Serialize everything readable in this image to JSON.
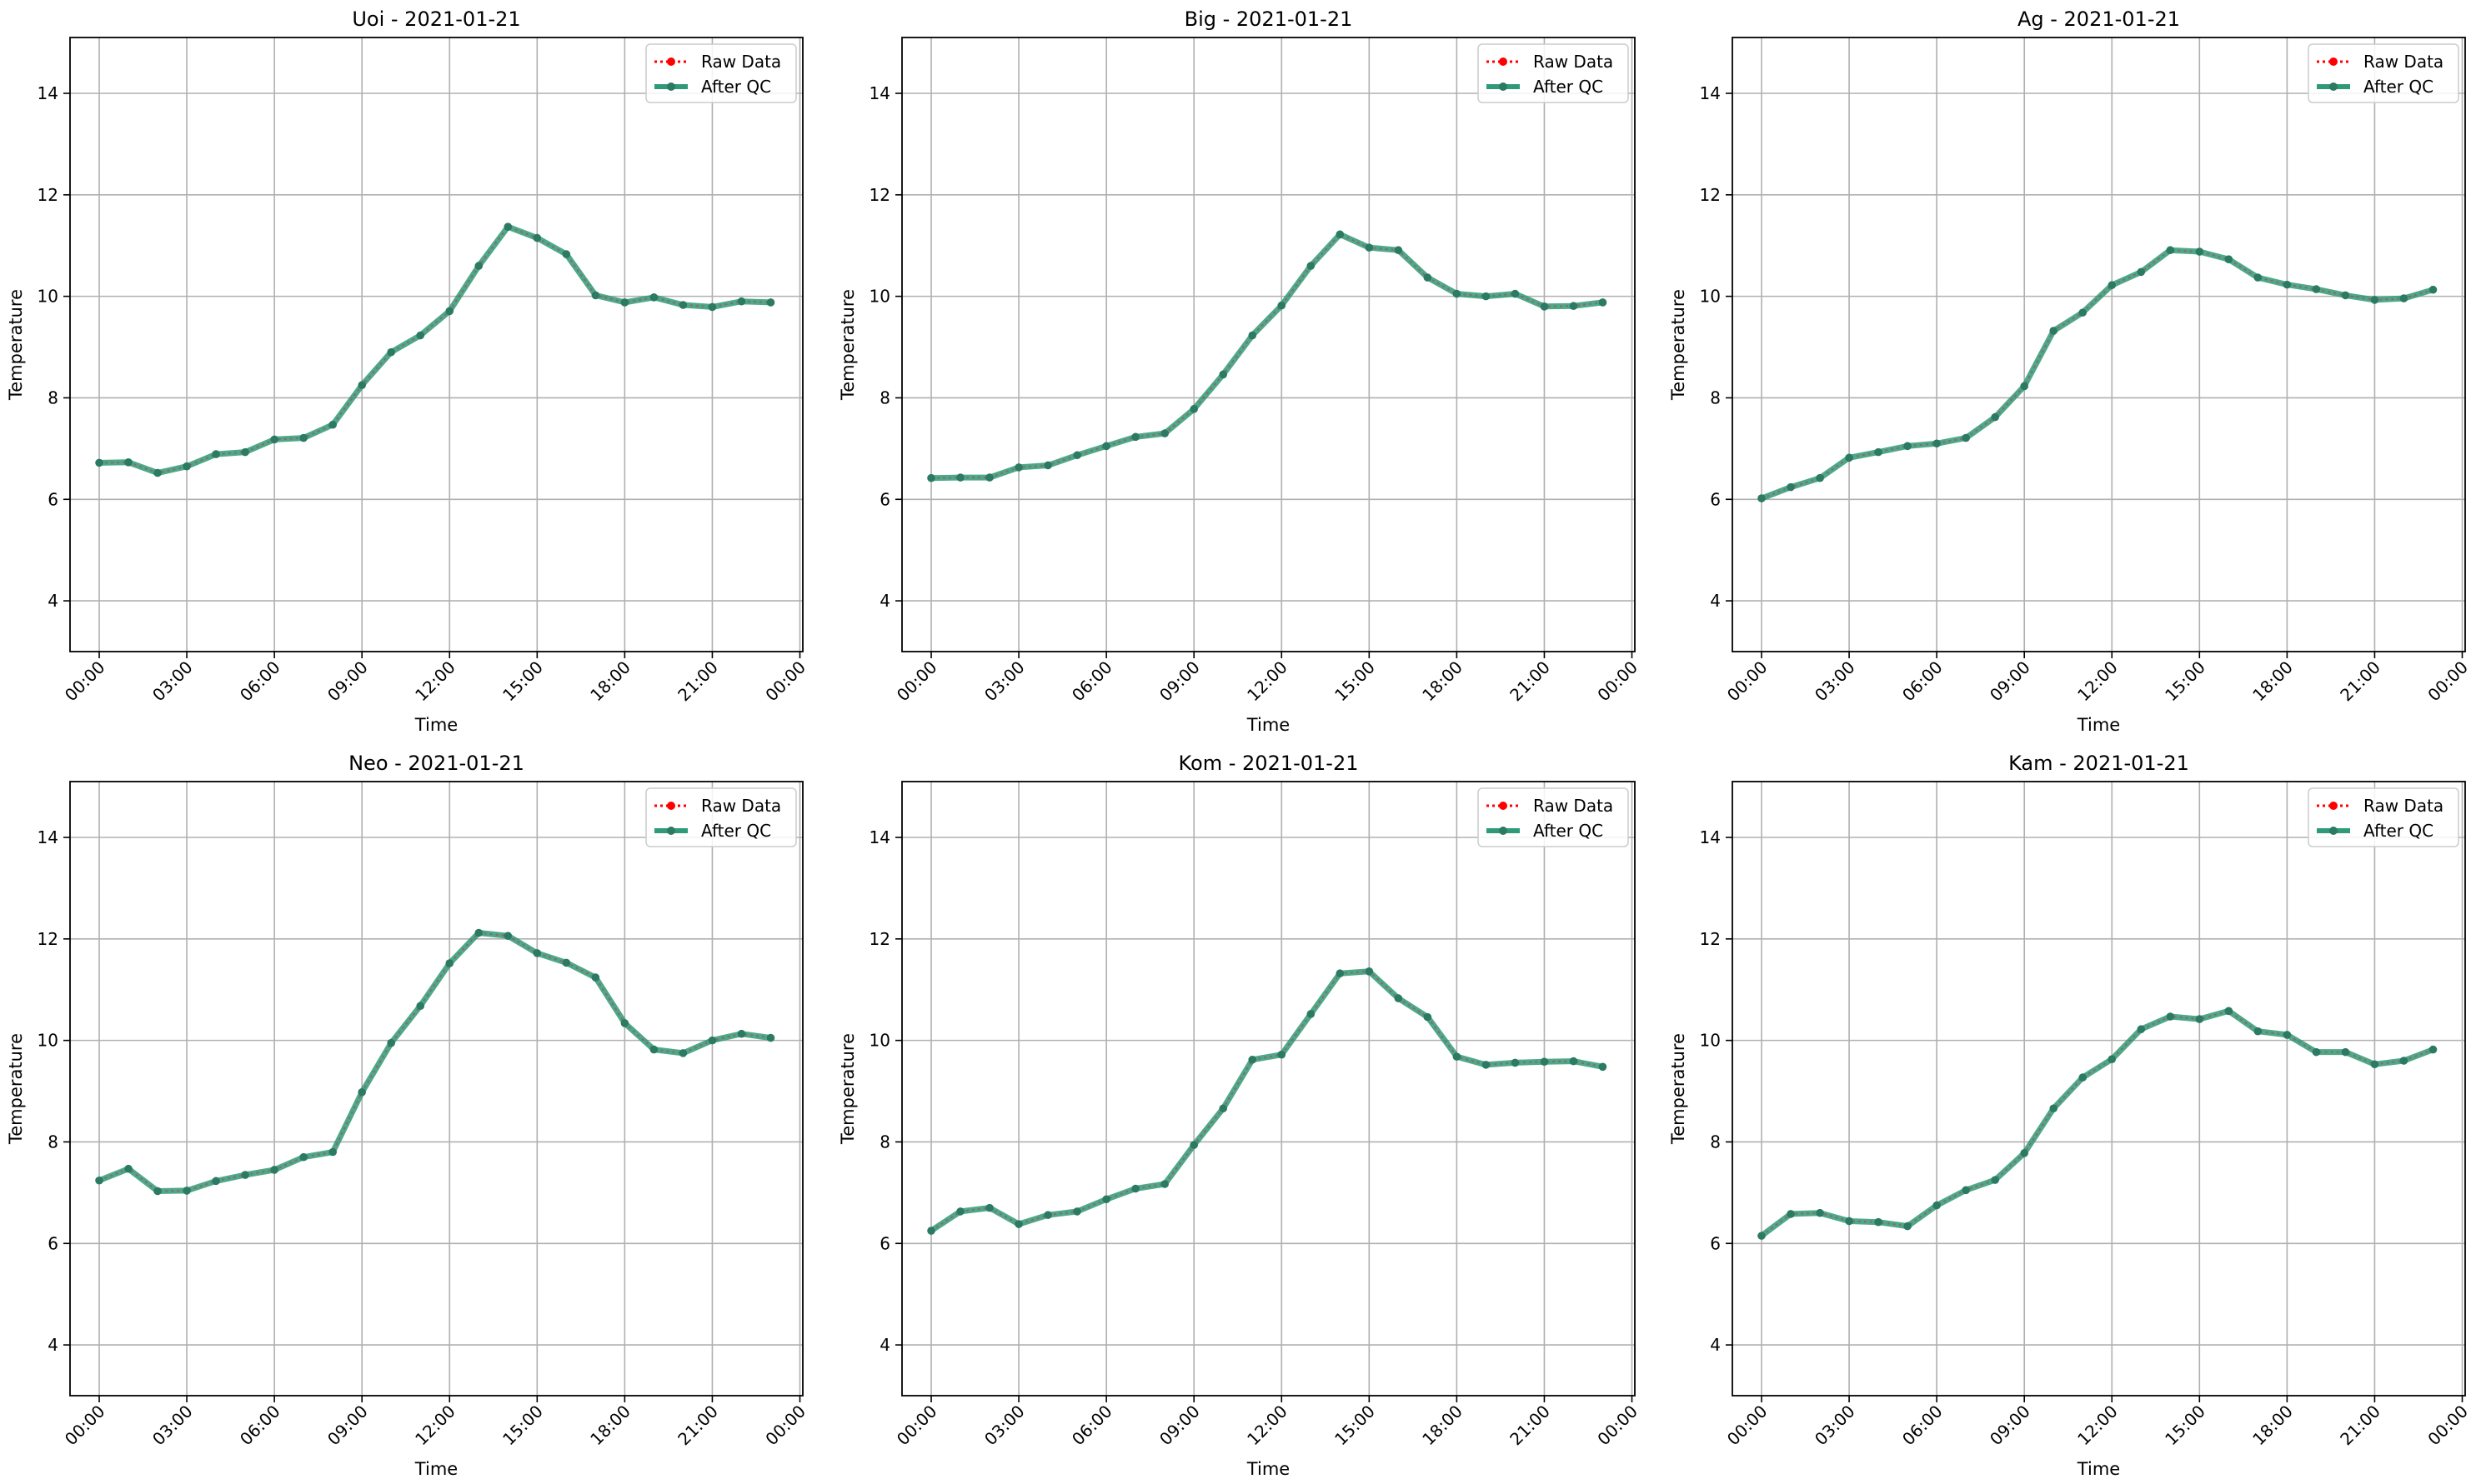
{
  "legend": {
    "raw_label": "Raw Data",
    "qc_label": "After QC"
  },
  "colors": {
    "raw": "#ff0000",
    "qc": "#2e9a78",
    "qc_marker": "#2c7a63",
    "grid": "#b0b0b0"
  },
  "chart_data": [
    {
      "type": "line",
      "title": "Uoi - 2021-01-21",
      "xlabel": "Time",
      "ylabel": "Temperature",
      "ylim": [
        3,
        15.1
      ],
      "xlim_hours": [
        -1,
        24.1
      ],
      "xticks": [
        "00:00",
        "03:00",
        "06:00",
        "09:00",
        "12:00",
        "15:00",
        "18:00",
        "21:00",
        "00:00"
      ],
      "yticks": [
        4,
        6,
        8,
        10,
        12,
        14
      ],
      "grid": true,
      "legend_position": "top-right",
      "x": [
        "00:00",
        "01:00",
        "02:00",
        "03:00",
        "04:00",
        "05:00",
        "06:00",
        "07:00",
        "08:00",
        "09:00",
        "10:00",
        "11:00",
        "12:00",
        "13:00",
        "14:00",
        "15:00",
        "16:00",
        "17:00",
        "18:00",
        "19:00",
        "20:00",
        "21:00",
        "22:00",
        "23:00"
      ],
      "series": [
        {
          "name": "Raw Data",
          "values": [
            6.72,
            6.73,
            6.52,
            6.65,
            6.89,
            6.93,
            7.18,
            7.21,
            7.47,
            8.25,
            8.9,
            9.23,
            9.71,
            10.6,
            11.37,
            11.15,
            10.83,
            10.02,
            9.88,
            9.98,
            9.83,
            9.79,
            9.9,
            9.88
          ]
        },
        {
          "name": "After QC",
          "values": [
            6.72,
            6.73,
            6.52,
            6.65,
            6.89,
            6.93,
            7.18,
            7.21,
            7.47,
            8.25,
            8.9,
            9.23,
            9.71,
            10.6,
            11.37,
            11.15,
            10.83,
            10.02,
            9.88,
            9.98,
            9.83,
            9.79,
            9.9,
            9.88
          ]
        }
      ]
    },
    {
      "type": "line",
      "title": "Big - 2021-01-21",
      "xlabel": "Time",
      "ylabel": "Temperature",
      "ylim": [
        3,
        15.1
      ],
      "xlim_hours": [
        -1,
        24.1
      ],
      "xticks": [
        "00:00",
        "03:00",
        "06:00",
        "09:00",
        "12:00",
        "15:00",
        "18:00",
        "21:00",
        "00:00"
      ],
      "yticks": [
        4,
        6,
        8,
        10,
        12,
        14
      ],
      "grid": true,
      "legend_position": "top-right",
      "x": [
        "00:00",
        "01:00",
        "02:00",
        "03:00",
        "04:00",
        "05:00",
        "06:00",
        "07:00",
        "08:00",
        "09:00",
        "10:00",
        "11:00",
        "12:00",
        "13:00",
        "14:00",
        "15:00",
        "16:00",
        "17:00",
        "18:00",
        "19:00",
        "20:00",
        "21:00",
        "22:00",
        "23:00"
      ],
      "series": [
        {
          "name": "Raw Data",
          "values": [
            6.42,
            6.43,
            6.43,
            6.63,
            6.67,
            6.87,
            7.05,
            7.23,
            7.3,
            7.78,
            8.46,
            9.23,
            9.82,
            10.6,
            11.22,
            10.96,
            10.91,
            10.37,
            10.05,
            10.0,
            10.05,
            9.8,
            9.81,
            9.88
          ]
        },
        {
          "name": "After QC",
          "values": [
            6.42,
            6.43,
            6.43,
            6.63,
            6.67,
            6.87,
            7.05,
            7.23,
            7.3,
            7.78,
            8.46,
            9.23,
            9.82,
            10.6,
            11.22,
            10.96,
            10.91,
            10.37,
            10.05,
            10.0,
            10.05,
            9.8,
            9.81,
            9.88
          ]
        }
      ]
    },
    {
      "type": "line",
      "title": "Ag - 2021-01-21",
      "xlabel": "Time",
      "ylabel": "Temperature",
      "ylim": [
        3,
        15.1
      ],
      "xlim_hours": [
        -1,
        24.1
      ],
      "xticks": [
        "00:00",
        "03:00",
        "06:00",
        "09:00",
        "12:00",
        "15:00",
        "18:00",
        "21:00",
        "00:00"
      ],
      "yticks": [
        4,
        6,
        8,
        10,
        12,
        14
      ],
      "grid": true,
      "legend_position": "top-right",
      "x": [
        "00:00",
        "01:00",
        "02:00",
        "03:00",
        "04:00",
        "05:00",
        "06:00",
        "07:00",
        "08:00",
        "09:00",
        "10:00",
        "11:00",
        "12:00",
        "13:00",
        "14:00",
        "15:00",
        "16:00",
        "17:00",
        "18:00",
        "19:00",
        "20:00",
        "21:00",
        "22:00",
        "23:00"
      ],
      "series": [
        {
          "name": "Raw Data",
          "values": [
            6.02,
            6.24,
            6.42,
            6.82,
            6.93,
            7.05,
            7.1,
            7.21,
            7.62,
            8.23,
            9.32,
            9.68,
            10.22,
            10.48,
            10.91,
            10.88,
            10.73,
            10.37,
            10.23,
            10.14,
            10.02,
            9.93,
            9.96,
            10.13
          ]
        },
        {
          "name": "After QC",
          "values": [
            6.02,
            6.24,
            6.42,
            6.82,
            6.93,
            7.05,
            7.1,
            7.21,
            7.62,
            8.23,
            9.32,
            9.68,
            10.22,
            10.48,
            10.91,
            10.88,
            10.73,
            10.37,
            10.23,
            10.14,
            10.02,
            9.93,
            9.96,
            10.13
          ]
        }
      ]
    },
    {
      "type": "line",
      "title": "Neo - 2021-01-21",
      "xlabel": "Time",
      "ylabel": "Temperature",
      "ylim": [
        3,
        15.1
      ],
      "xlim_hours": [
        -1,
        24.1
      ],
      "xticks": [
        "00:00",
        "03:00",
        "06:00",
        "09:00",
        "12:00",
        "15:00",
        "18:00",
        "21:00",
        "00:00"
      ],
      "yticks": [
        4,
        6,
        8,
        10,
        12,
        14
      ],
      "grid": true,
      "legend_position": "top-right",
      "x": [
        "00:00",
        "01:00",
        "02:00",
        "03:00",
        "04:00",
        "05:00",
        "06:00",
        "07:00",
        "08:00",
        "09:00",
        "10:00",
        "11:00",
        "12:00",
        "13:00",
        "14:00",
        "15:00",
        "16:00",
        "17:00",
        "18:00",
        "19:00",
        "20:00",
        "21:00",
        "22:00",
        "23:00"
      ],
      "series": [
        {
          "name": "Raw Data",
          "values": [
            7.24,
            7.47,
            7.03,
            7.04,
            7.23,
            7.35,
            7.45,
            7.7,
            7.8,
            8.98,
            9.95,
            10.68,
            11.52,
            12.12,
            12.06,
            11.72,
            11.53,
            11.24,
            10.34,
            9.82,
            9.75,
            10.0,
            10.13,
            10.05
          ]
        },
        {
          "name": "After QC",
          "values": [
            7.24,
            7.47,
            7.03,
            7.04,
            7.23,
            7.35,
            7.45,
            7.7,
            7.8,
            8.98,
            9.95,
            10.68,
            11.52,
            12.12,
            12.06,
            11.72,
            11.53,
            11.24,
            10.34,
            9.82,
            9.75,
            10.0,
            10.13,
            10.05
          ]
        }
      ]
    },
    {
      "type": "line",
      "title": "Kom - 2021-01-21",
      "xlabel": "Time",
      "ylabel": "Temperature",
      "ylim": [
        3,
        15.1
      ],
      "xlim_hours": [
        -1,
        24.1
      ],
      "xticks": [
        "00:00",
        "03:00",
        "06:00",
        "09:00",
        "12:00",
        "15:00",
        "18:00",
        "21:00",
        "00:00"
      ],
      "yticks": [
        4,
        6,
        8,
        10,
        12,
        14
      ],
      "grid": true,
      "legend_position": "top-right",
      "x": [
        "00:00",
        "01:00",
        "02:00",
        "03:00",
        "04:00",
        "05:00",
        "06:00",
        "07:00",
        "08:00",
        "09:00",
        "10:00",
        "11:00",
        "12:00",
        "13:00",
        "14:00",
        "15:00",
        "16:00",
        "17:00",
        "18:00",
        "19:00",
        "20:00",
        "21:00",
        "22:00",
        "23:00"
      ],
      "series": [
        {
          "name": "Raw Data",
          "values": [
            6.25,
            6.63,
            6.7,
            6.38,
            6.56,
            6.63,
            6.87,
            7.08,
            7.17,
            7.94,
            8.66,
            9.62,
            9.72,
            10.52,
            11.32,
            11.36,
            10.83,
            10.46,
            9.68,
            9.52,
            9.56,
            9.58,
            9.59,
            9.48
          ]
        },
        {
          "name": "After QC",
          "values": [
            6.25,
            6.63,
            6.7,
            6.38,
            6.56,
            6.63,
            6.87,
            7.08,
            7.17,
            7.94,
            8.66,
            9.62,
            9.72,
            10.52,
            11.32,
            11.36,
            10.83,
            10.46,
            9.68,
            9.52,
            9.56,
            9.58,
            9.59,
            9.48
          ]
        }
      ]
    },
    {
      "type": "line",
      "title": "Kam - 2021-01-21",
      "xlabel": "Time",
      "ylabel": "Temperature",
      "ylim": [
        3,
        15.1
      ],
      "xlim_hours": [
        -1,
        24.1
      ],
      "xticks": [
        "00:00",
        "03:00",
        "06:00",
        "09:00",
        "12:00",
        "15:00",
        "18:00",
        "21:00",
        "00:00"
      ],
      "yticks": [
        4,
        6,
        8,
        10,
        12,
        14
      ],
      "grid": true,
      "legend_position": "top-right",
      "x": [
        "00:00",
        "01:00",
        "02:00",
        "03:00",
        "04:00",
        "05:00",
        "06:00",
        "07:00",
        "08:00",
        "09:00",
        "10:00",
        "11:00",
        "12:00",
        "13:00",
        "14:00",
        "15:00",
        "16:00",
        "17:00",
        "18:00",
        "19:00",
        "20:00",
        "21:00",
        "22:00",
        "23:00"
      ],
      "series": [
        {
          "name": "Raw Data",
          "values": [
            6.15,
            6.58,
            6.6,
            6.44,
            6.42,
            6.34,
            6.75,
            7.05,
            7.25,
            7.78,
            8.66,
            9.27,
            9.63,
            10.22,
            10.47,
            10.42,
            10.58,
            10.18,
            10.11,
            9.77,
            9.77,
            9.53,
            9.6,
            9.82
          ]
        },
        {
          "name": "After QC",
          "values": [
            6.15,
            6.58,
            6.6,
            6.44,
            6.42,
            6.34,
            6.75,
            7.05,
            7.25,
            7.78,
            8.66,
            9.27,
            9.63,
            10.22,
            10.47,
            10.42,
            10.58,
            10.18,
            10.11,
            9.77,
            9.77,
            9.53,
            9.6,
            9.82
          ]
        }
      ]
    }
  ]
}
